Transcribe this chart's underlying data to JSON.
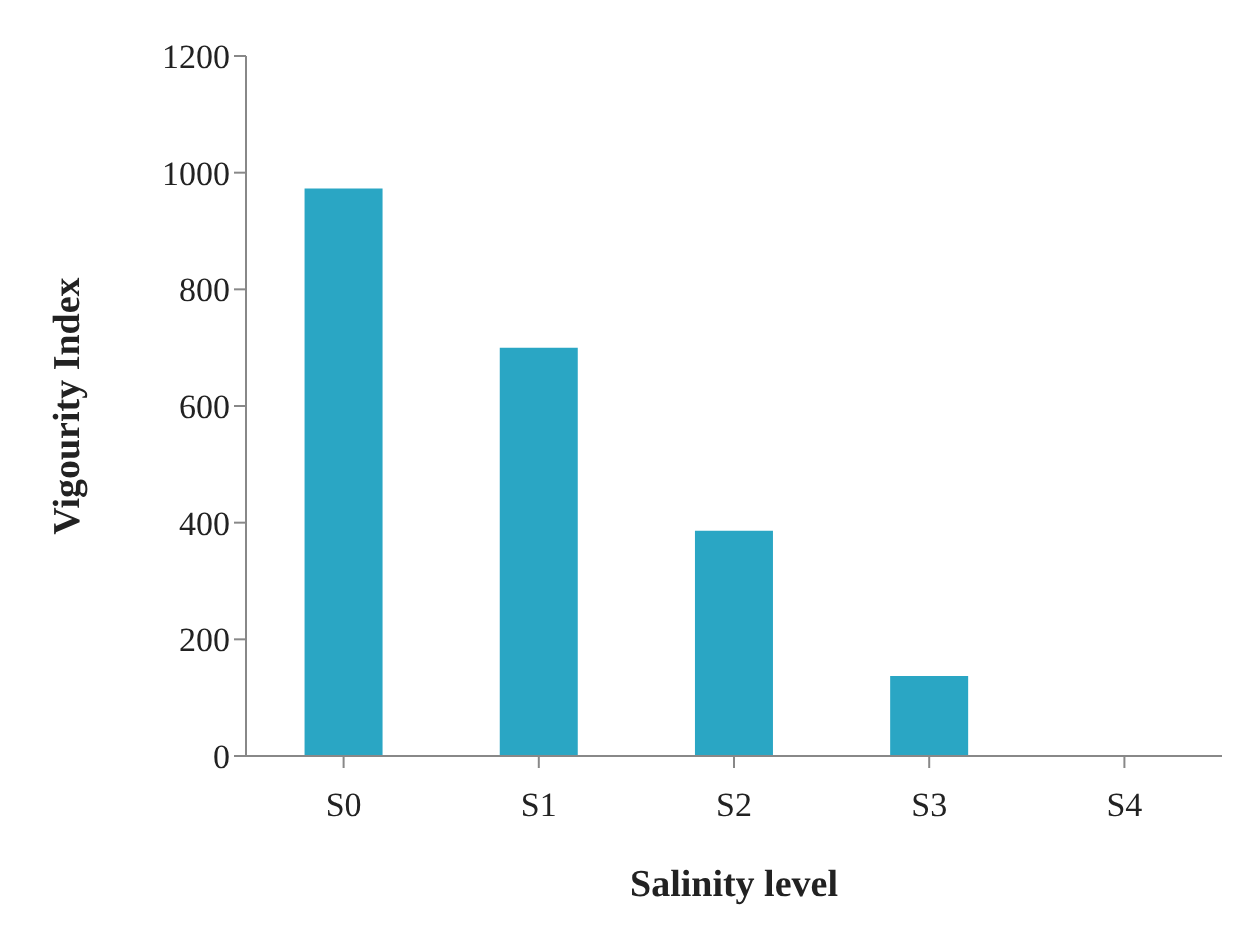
{
  "chart_data": {
    "type": "bar",
    "xlabel": "Salinity level",
    "ylabel": "Vigourity Index",
    "categories": [
      "S0",
      "S1",
      "S2",
      "S3",
      "S4"
    ],
    "values": [
      973,
      700,
      386,
      137,
      0
    ],
    "color": "#2aa6c4",
    "ylim": [
      0,
      1200
    ],
    "yticks": [
      0,
      200,
      400,
      600,
      800,
      1000,
      1200
    ],
    "grid": false
  }
}
